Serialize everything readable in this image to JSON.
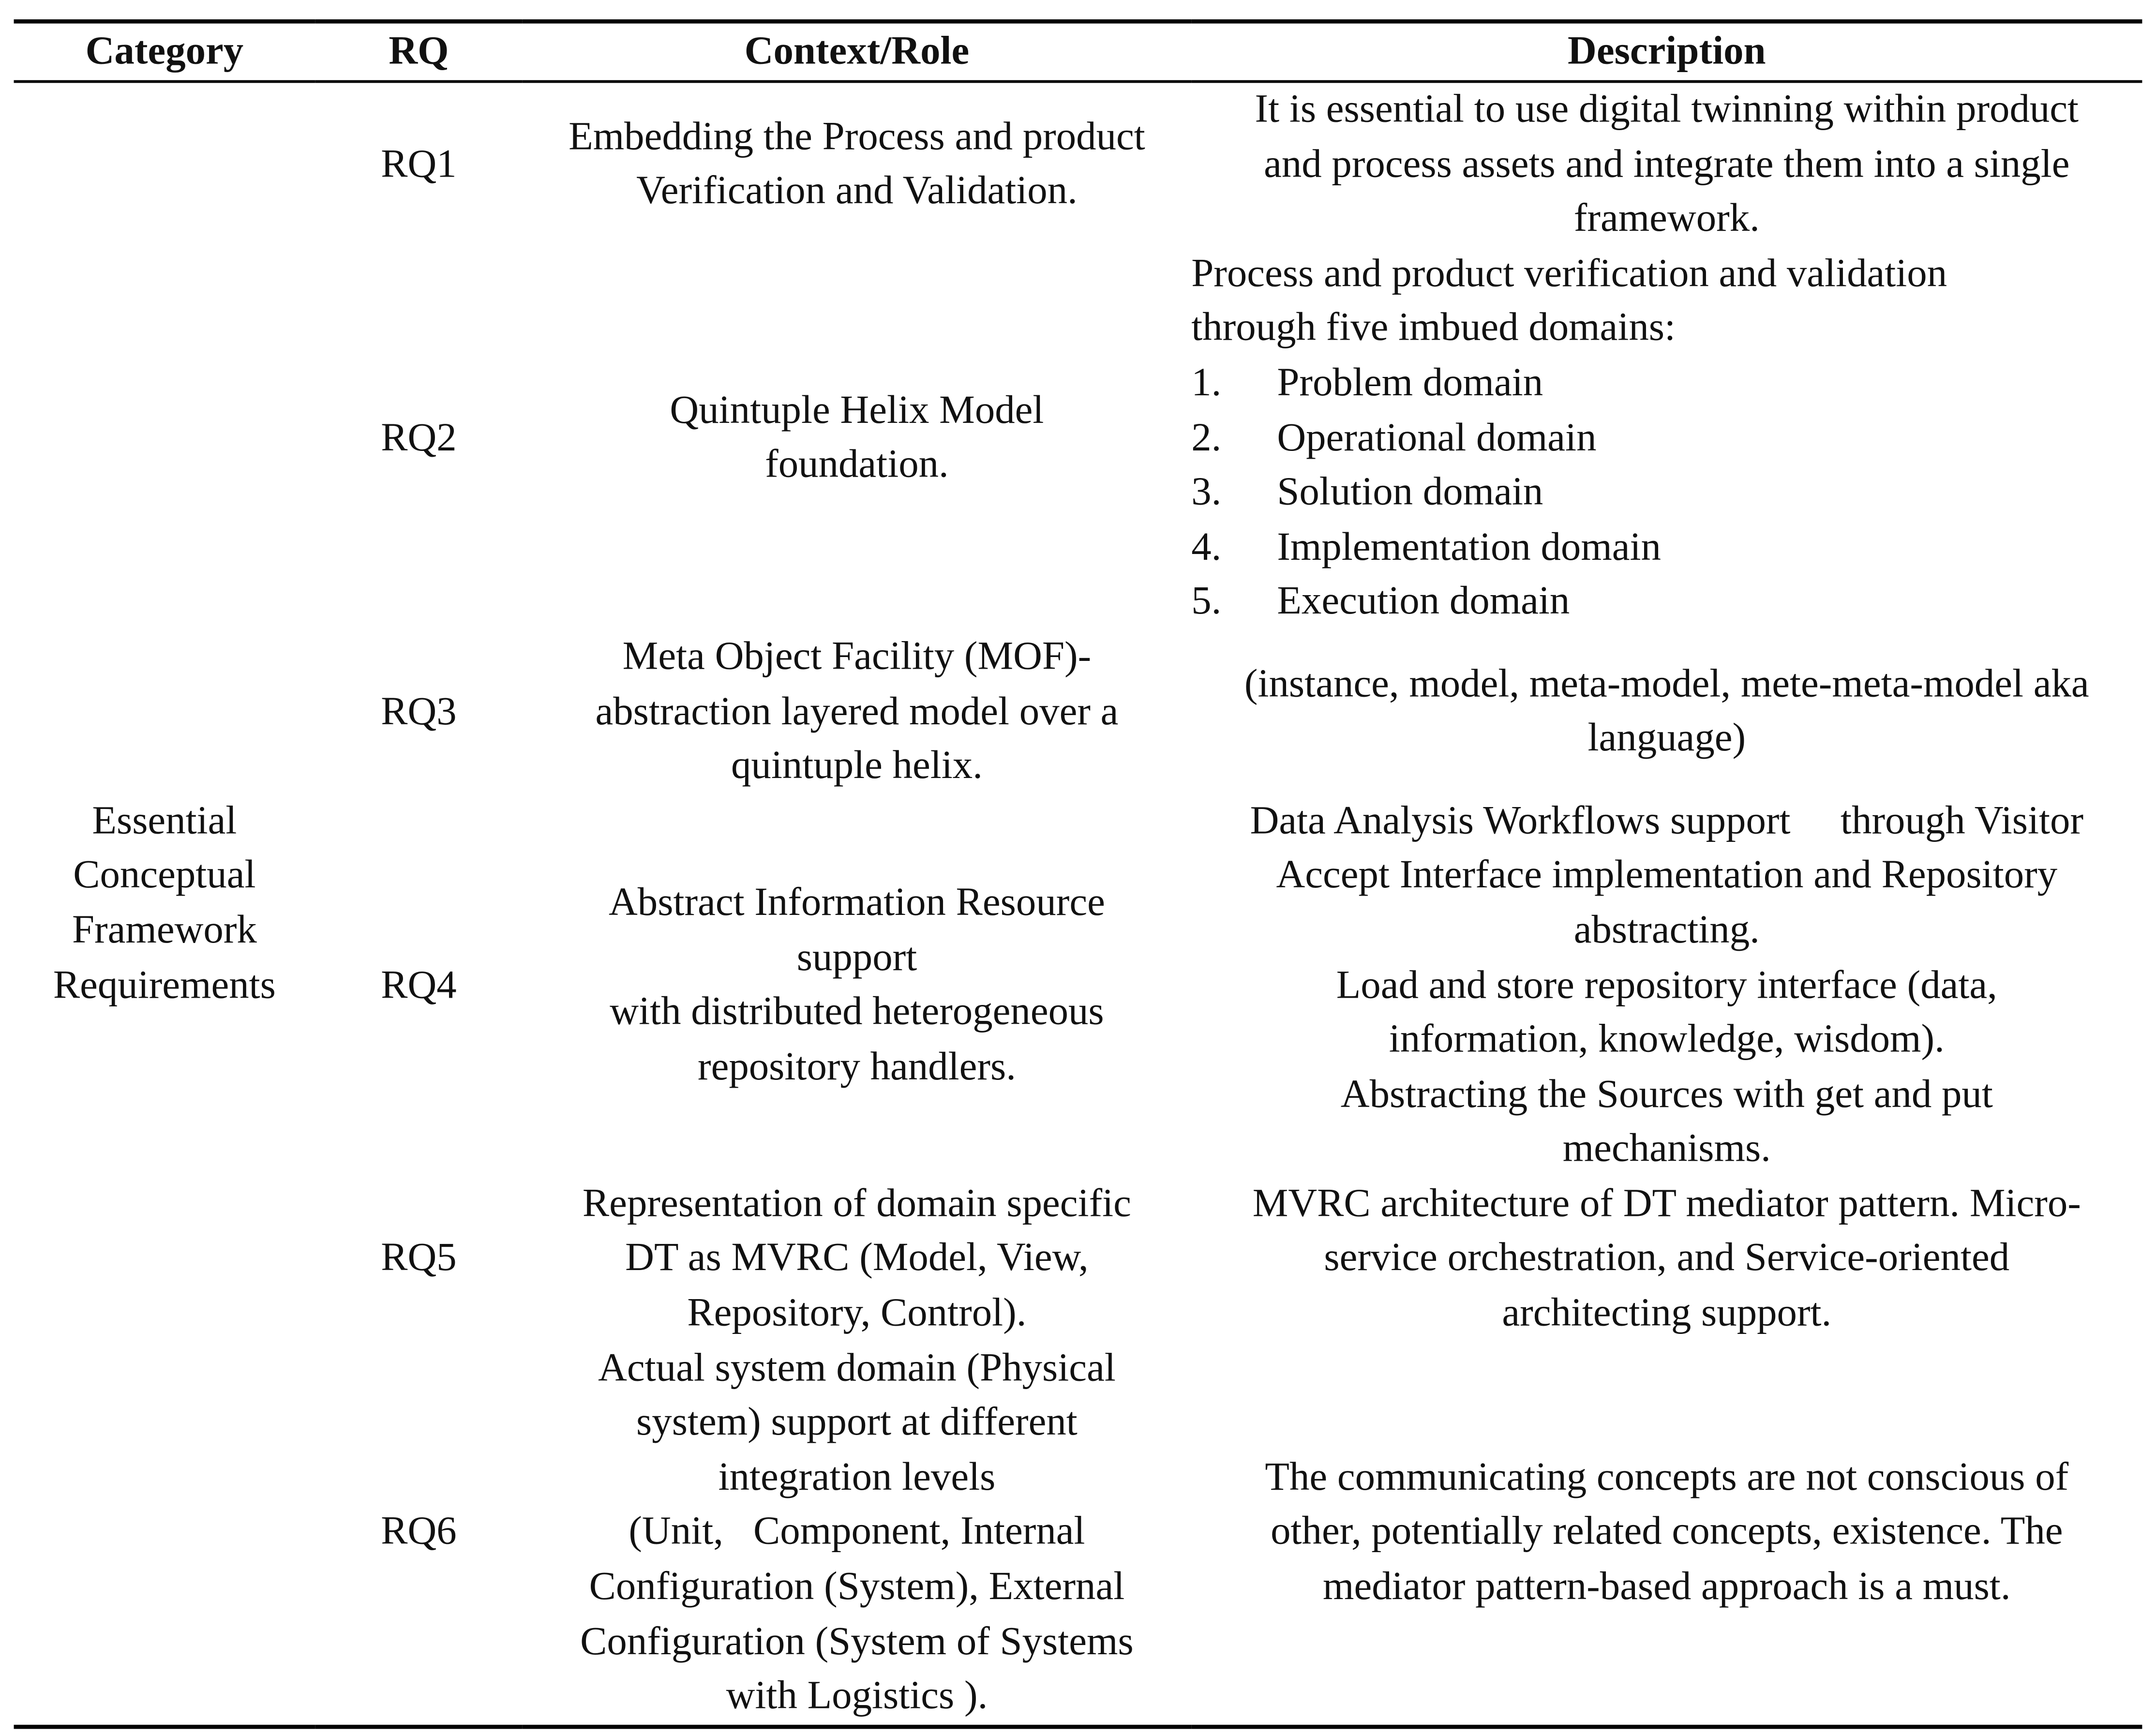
{
  "headers": [
    "Category",
    "RQ",
    "Context/Role",
    "Description"
  ],
  "category": [
    "Essential",
    "Conceptual",
    "Framework",
    "Requirements"
  ],
  "rows": [
    {
      "rq": "RQ1",
      "context": [
        "Embedding the Process and product",
        "Verification and Validation."
      ],
      "description": [
        "It is essential to use digital twinning within product",
        "and process assets and integrate them into a single",
        "framework."
      ]
    },
    {
      "rq": "RQ2",
      "context": [
        "Quintuple Helix Model",
        "foundation."
      ],
      "description_intro": [
        "Process and product verification and validation",
        "through five imbued domains:"
      ],
      "description_list": [
        {
          "n": "1.",
          "text": "Problem domain"
        },
        {
          "n": "2.",
          "text": "Operational domain"
        },
        {
          "n": "3.",
          "text": "Solution domain"
        },
        {
          "n": "4.",
          "text": "Implementation domain"
        },
        {
          "n": "5.",
          "text": "Execution domain"
        }
      ]
    },
    {
      "rq": "RQ3",
      "context": [
        "Meta Object Facility (MOF)-",
        "abstraction layered model over a",
        "quintuple helix."
      ],
      "description": [
        "(instance, model, meta-model, mete-meta-model aka",
        "language)"
      ]
    },
    {
      "rq": "RQ4",
      "context": [
        "Abstract Information Resource",
        "support",
        "with distributed heterogeneous",
        "repository handlers."
      ],
      "description": [
        "Data Analysis Workflows support     through Visitor",
        "Accept Interface implementation and Repository",
        "abstracting.",
        "Load and store repository interface (data,",
        "information, knowledge, wisdom).",
        "Abstracting the Sources with get and put",
        "mechanisms."
      ]
    },
    {
      "rq": "RQ5",
      "context": [
        "Representation of domain specific",
        "DT as MVRC (Model, View,",
        "Repository, Control)."
      ],
      "description": [
        "MVRC architecture of DT mediator pattern. Micro-",
        "service orchestration, and Service-oriented",
        "architecting support."
      ]
    },
    {
      "rq": "RQ6",
      "context": [
        "Actual system domain (Physical",
        "system) support at different",
        "integration levels",
        "(Unit,   Component, Internal",
        "Configuration (System), External",
        "Configuration (System of Systems",
        "with Logistics )."
      ],
      "description": [
        "The communicating concepts are not conscious of",
        "other, potentially related concepts, existence. The",
        "mediator pattern-based approach is a must."
      ]
    }
  ]
}
